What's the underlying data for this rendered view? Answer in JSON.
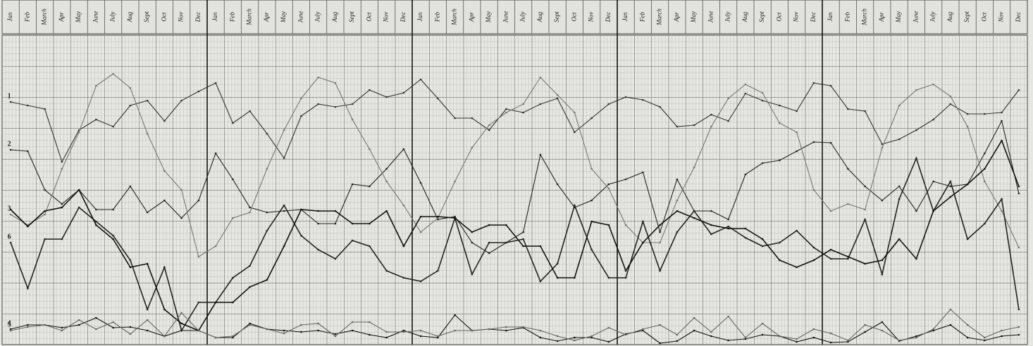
{
  "chart_data": {
    "type": "line",
    "categories": [
      "Jan",
      "Feb",
      "March",
      "Apr",
      "May",
      "June",
      "July",
      "Aug",
      "Sept",
      "Oct",
      "Nov",
      "Dec",
      "Jan",
      "Feb",
      "March",
      "Apr",
      "May",
      "June",
      "July",
      "Aug",
      "Sept",
      "Oct",
      "Nov",
      "Dec",
      "Jan",
      "Feb",
      "March",
      "Apr",
      "May",
      "June",
      "July",
      "Aug",
      "Sept",
      "Oct",
      "Nov",
      "Dec",
      "Jan",
      "Feb",
      "March",
      "Apr",
      "May",
      "June",
      "July",
      "Aug",
      "Sept",
      "Oct",
      "Nov",
      "Dec",
      "Jan",
      "Feb",
      "March",
      "Apr",
      "May",
      "June",
      "July",
      "Aug",
      "Sept",
      "Oct",
      "Nov",
      "Dec"
    ],
    "ylim": [
      0,
      440
    ],
    "grid": true,
    "series": [
      {
        "name": "1",
        "color": "#333333",
        "values": [
          345,
          340,
          335,
          260,
          305,
          320,
          310,
          340,
          347,
          318,
          347,
          360,
          372,
          315,
          332,
          300,
          265,
          325,
          342,
          338,
          342,
          362,
          352,
          358,
          377,
          350,
          322,
          322,
          305,
          335,
          330,
          342,
          350,
          302,
          322,
          342,
          352,
          348,
          338,
          310,
          312,
          327,
          318,
          357,
          347,
          340,
          332,
          372,
          368,
          335,
          332,
          285,
          292,
          305,
          320,
          342,
          328,
          328,
          330,
          362
        ]
      },
      {
        "name": "2",
        "color": "#222222",
        "values": [
          277,
          275,
          220,
          200,
          220,
          192,
          192,
          225,
          188,
          205,
          180,
          205,
          272,
          235,
          195,
          188,
          190,
          192,
          172,
          172,
          228,
          225,
          250,
          278,
          230,
          178,
          182,
          145,
          130,
          145,
          160,
          270,
          228,
          195,
          205,
          228,
          235,
          245,
          160,
          235,
          190,
          190,
          178,
          242,
          258,
          262,
          275,
          288,
          287,
          250,
          225,
          205,
          225,
          190,
          232,
          225,
          228,
          272,
          318,
          215
        ]
      },
      {
        "name": "3",
        "color": "#777777",
        "values": [
          185,
          170,
          185,
          250,
          302,
          368,
          385,
          365,
          300,
          247,
          220,
          125,
          140,
          180,
          188,
          250,
          305,
          350,
          380,
          372,
          320,
          278,
          232,
          198,
          160,
          180,
          232,
          280,
          312,
          330,
          342,
          380,
          355,
          330,
          250,
          222,
          170,
          145,
          145,
          205,
          252,
          310,
          350,
          370,
          358,
          315,
          302,
          220,
          190,
          200,
          192,
          280,
          340,
          362,
          370,
          353,
          310,
          232,
          190,
          138
        ]
      },
      {
        "name": "6",
        "color": "#222222",
        "values": [
          145,
          80,
          150,
          150,
          195,
          175,
          155,
          120,
          50,
          110,
          20,
          60,
          60,
          95,
          112,
          162,
          198,
          155,
          135,
          122,
          148,
          140,
          105,
          95,
          90,
          105,
          180,
          100,
          145,
          145,
          150,
          90,
          115,
          198,
          135,
          95,
          95,
          175,
          105,
          160,
          190,
          157,
          168,
          152,
          140,
          145,
          162,
          138,
          122,
          122,
          178,
          100,
          207,
          265,
          190,
          232,
          150,
          172,
          207,
          50
        ]
      },
      {
        "color": "#111111",
        "values": [
          192,
          168,
          190,
          195,
          220,
          170,
          150,
          110,
          115,
          50,
          30,
          20,
          60,
          60,
          82,
          92,
          140,
          192,
          190,
          190,
          172,
          172,
          190,
          140,
          182,
          182,
          180,
          160,
          170,
          170,
          140,
          140,
          95,
          95,
          175,
          170,
          105,
          145,
          170,
          190,
          180,
          170,
          165,
          165,
          150,
          120,
          110,
          120,
          135,
          125,
          115,
          120,
          150,
          122,
          190,
          210,
          228,
          250,
          290,
          225
        ]
      },
      {
        "name": "4",
        "color": "#111111",
        "values": [
          22,
          28,
          28,
          24,
          28,
          38,
          24,
          25,
          20,
          12,
          20,
          20,
          10,
          10,
          30,
          22,
          20,
          18,
          20,
          15,
          20,
          14,
          10,
          20,
          12,
          10,
          42,
          20,
          22,
          20,
          24,
          10,
          5,
          10,
          10,
          4,
          15,
          20,
          2,
          5,
          20,
          12,
          6,
          8,
          14,
          12,
          4,
          10,
          3,
          4,
          18,
          32,
          5,
          12,
          20,
          28,
          10,
          6,
          12,
          14
        ]
      },
      {
        "name": "5",
        "color": "#666666",
        "values": [
          20,
          25,
          28,
          20,
          35,
          22,
          32,
          15,
          35,
          12,
          45,
          20,
          10,
          12,
          28,
          22,
          16,
          28,
          30,
          12,
          32,
          32,
          18,
          18,
          20,
          12,
          20,
          20,
          22,
          25,
          25,
          20,
          12,
          6,
          12,
          24,
          14,
          22,
          28,
          14,
          38,
          18,
          40,
          10,
          30,
          12,
          8,
          22,
          16,
          6,
          28,
          20,
          6,
          10,
          22,
          50,
          28,
          10,
          20,
          25
        ]
      }
    ]
  }
}
